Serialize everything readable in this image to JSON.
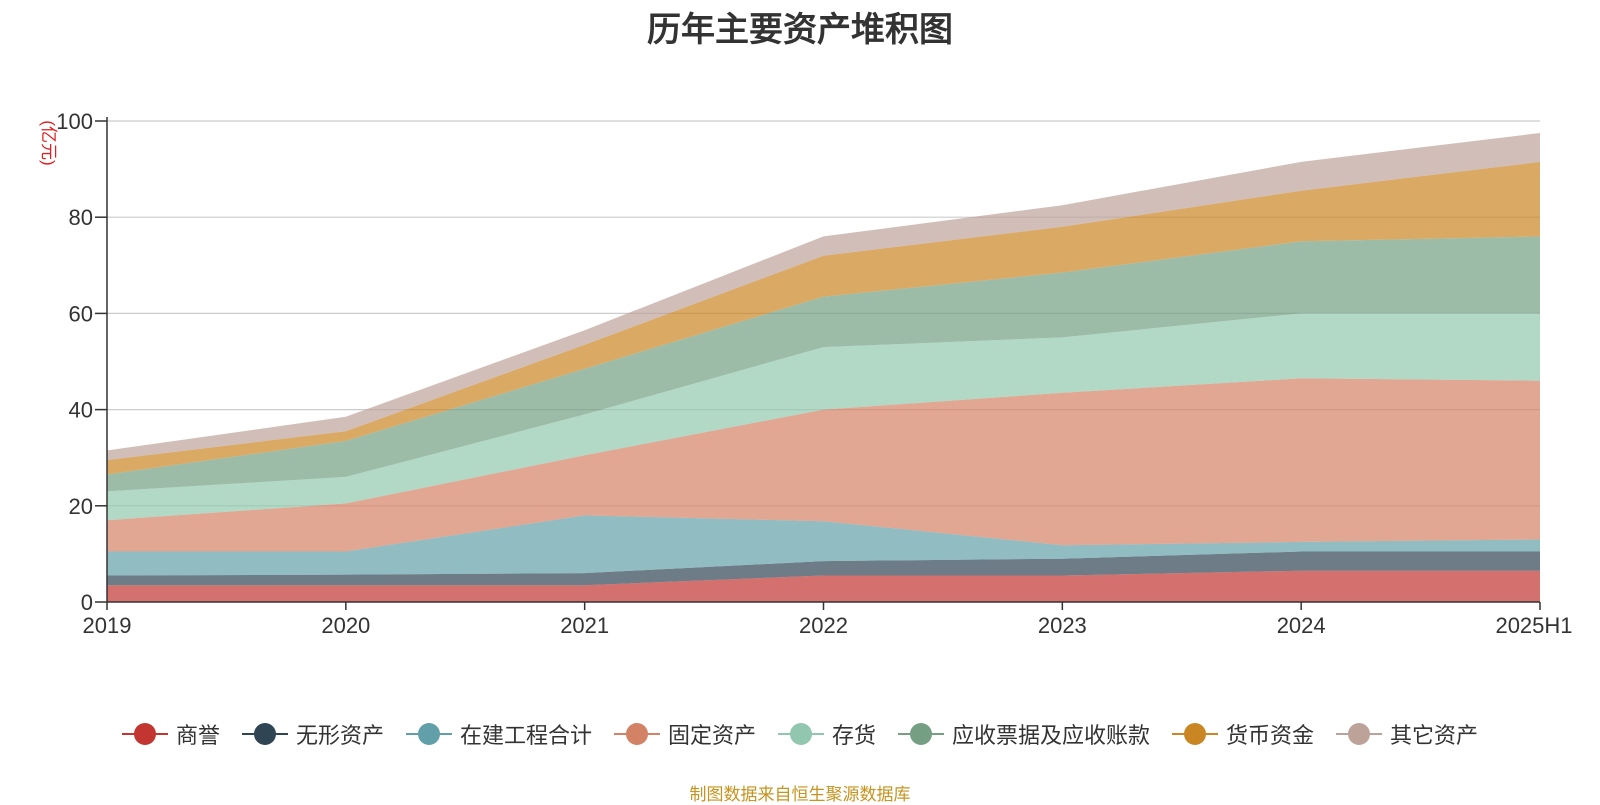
{
  "chart_data": {
    "type": "area",
    "stacked": true,
    "title": "历年主要资产堆积图",
    "ylabel": "(亿元)",
    "ylim": [
      0,
      100
    ],
    "yticks": [
      0,
      20,
      40,
      60,
      80,
      100
    ],
    "grid": true,
    "legend_position": "bottom",
    "categories": [
      "2019",
      "2020",
      "2021",
      "2022",
      "2023",
      "2024",
      "2025H1"
    ],
    "series": [
      {
        "name": "商誉",
        "color": "#c23531",
        "values": [
          3.5,
          3.5,
          3.5,
          5.5,
          5.5,
          6.5,
          6.5
        ]
      },
      {
        "name": "无形资产",
        "color": "#2f4554",
        "values": [
          2.0,
          2.2,
          2.5,
          3.0,
          3.5,
          4.0,
          4.0
        ]
      },
      {
        "name": "在建工程合计",
        "color": "#61a0a8",
        "values": [
          5.0,
          4.8,
          12.0,
          8.3,
          2.8,
          2.0,
          2.5
        ]
      },
      {
        "name": "固定资产",
        "color": "#d48265",
        "values": [
          6.5,
          10.0,
          12.5,
          23.2,
          31.7,
          34.0,
          33.0
        ]
      },
      {
        "name": "存货",
        "color": "#91c7ae",
        "values": [
          6.0,
          5.5,
          8.5,
          13.0,
          11.5,
          13.5,
          14.0
        ]
      },
      {
        "name": "应收票据及应收账款",
        "color": "#749f83",
        "values": [
          3.5,
          7.5,
          9.5,
          10.5,
          13.5,
          15.0,
          16.0
        ]
      },
      {
        "name": "货币资金",
        "color": "#ca8622",
        "values": [
          3.0,
          2.0,
          5.0,
          8.5,
          9.5,
          10.5,
          15.5
        ]
      },
      {
        "name": "其它资产",
        "color": "#bda29a",
        "values": [
          2.0,
          3.0,
          3.0,
          4.0,
          4.5,
          6.0,
          6.0
        ]
      }
    ]
  },
  "footer": {
    "source": "制图数据来自恒生聚源数据库"
  }
}
